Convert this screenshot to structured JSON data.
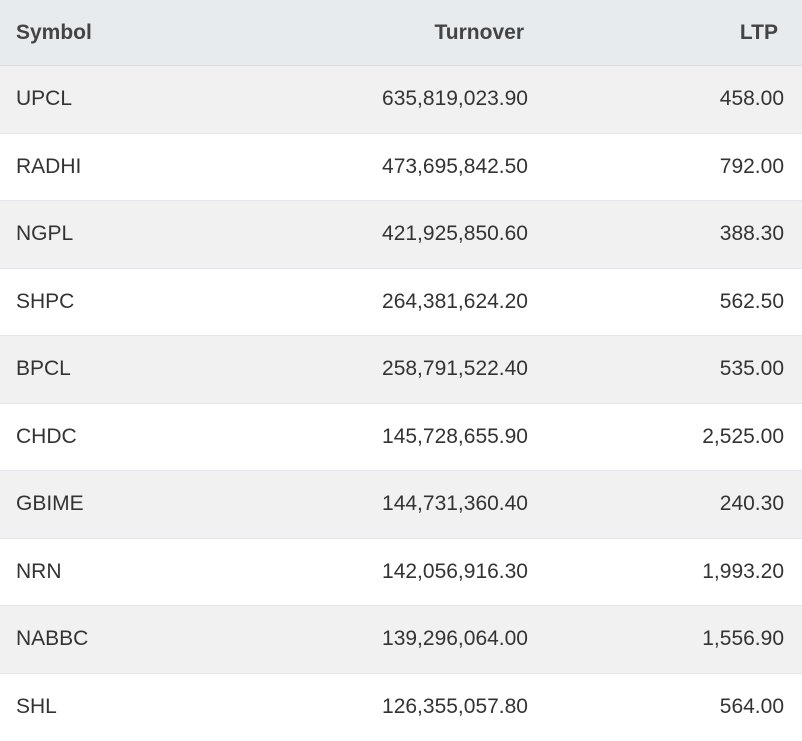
{
  "table": {
    "headers": {
      "symbol": "Symbol",
      "turnover": "Turnover",
      "ltp": "LTP"
    },
    "rows": [
      {
        "symbol": "UPCL",
        "turnover": "635,819,023.90",
        "ltp": "458.00"
      },
      {
        "symbol": "RADHI",
        "turnover": "473,695,842.50",
        "ltp": "792.00"
      },
      {
        "symbol": "NGPL",
        "turnover": "421,925,850.60",
        "ltp": "388.30"
      },
      {
        "symbol": "SHPC",
        "turnover": "264,381,624.20",
        "ltp": "562.50"
      },
      {
        "symbol": "BPCL",
        "turnover": "258,791,522.40",
        "ltp": "535.00"
      },
      {
        "symbol": "CHDC",
        "turnover": "145,728,655.90",
        "ltp": "2,525.00"
      },
      {
        "symbol": "GBIME",
        "turnover": "144,731,360.40",
        "ltp": "240.30"
      },
      {
        "symbol": "NRN",
        "turnover": "142,056,916.30",
        "ltp": "1,993.20"
      },
      {
        "symbol": "NABBC",
        "turnover": "139,296,064.00",
        "ltp": "1,556.90"
      },
      {
        "symbol": "SHL",
        "turnover": "126,355,057.80",
        "ltp": "564.00"
      }
    ]
  },
  "colors": {
    "header_bg": "#e8ebee",
    "row_alt_bg": "#f1f1f1",
    "row_bg": "#ffffff",
    "text": "#333333"
  }
}
